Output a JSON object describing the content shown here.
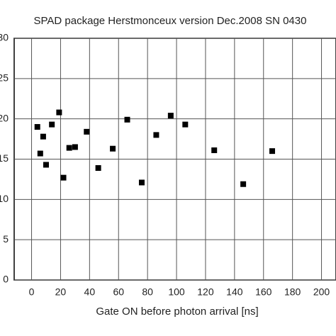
{
  "chart_data": {
    "type": "scatter",
    "title": "SPAD package Herstmonceux version Dec.2008 SN 0430",
    "x_label": "Gate ON before photon arrival [ns]",
    "color": "#000000",
    "x": [
      4,
      6,
      8,
      10,
      14,
      19,
      22,
      26,
      30,
      38,
      46,
      56,
      66,
      76,
      86,
      96,
      106,
      126,
      146,
      166
    ],
    "values": [
      19.0,
      15.7,
      17.8,
      14.3,
      19.3,
      20.8,
      12.7,
      16.4,
      16.5,
      18.4,
      13.9,
      16.3,
      19.9,
      12.1,
      18.0,
      20.4,
      19.3,
      16.1,
      11.9,
      16.0
    ],
    "xlim": [
      -12,
      210
    ],
    "ylim": [
      0,
      30
    ],
    "xticks": [
      0,
      20,
      40,
      60,
      80,
      100,
      120,
      140,
      160,
      180,
      200
    ],
    "yticks": [
      0,
      5,
      10,
      15,
      20,
      25,
      30
    ],
    "grid": true
  }
}
